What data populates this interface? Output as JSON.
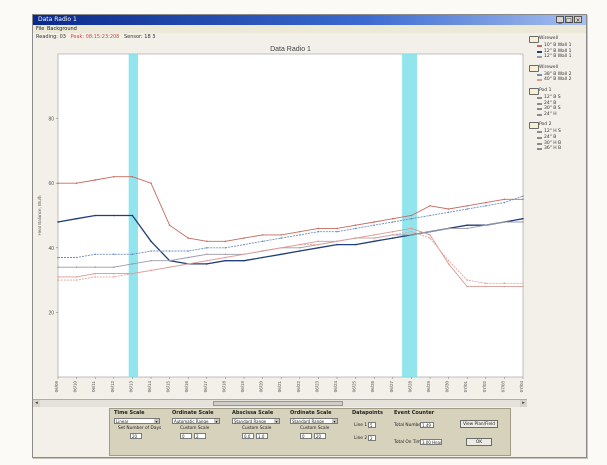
{
  "window": {
    "title": "Data Radio 1",
    "menu": [
      "File",
      "Background"
    ]
  },
  "readout": {
    "text1": "Reading: 03",
    "text2": "Peak: 08:15:23:208",
    "text3": "Sensor: 18 3"
  },
  "colors": {
    "highlight": "#7fe0ea",
    "red_series": "#c66a5f",
    "dark_blue_series": "#223f78",
    "light_blue_series": "#6e8fbe",
    "gray_series": "#9a9aaa",
    "pink_series": "#d99a94"
  },
  "chart_data": {
    "type": "line",
    "title": "Data Radio 1",
    "ylabel": "Heat Balance, Btu/h",
    "ylim": [
      0,
      100
    ],
    "yticks": [
      "80",
      "60",
      "40",
      "20"
    ],
    "categories": [
      "06/09",
      "06/10",
      "06/11",
      "06/12",
      "06/13",
      "06/14",
      "06/15",
      "06/16",
      "06/17",
      "06/18",
      "06/19",
      "06/20",
      "06/21",
      "06/22",
      "06/23",
      "06/24",
      "06/25",
      "06/26",
      "06/27",
      "06/28",
      "06/29",
      "06/30",
      "07/01",
      "07/02",
      "07/03",
      "07/04"
    ],
    "highlight_bands": [
      [
        3.8,
        4.3
      ],
      [
        18.5,
        19.3
      ]
    ],
    "series": [
      {
        "values": [
          60,
          60,
          61,
          62,
          62,
          60,
          47,
          43,
          42,
          42,
          43,
          44,
          44,
          45,
          46,
          46,
          47,
          48,
          49,
          50,
          53,
          52,
          53,
          54,
          55,
          55
        ],
        "color": "#c66a5f"
      },
      {
        "values": [
          48,
          49,
          50,
          50,
          50,
          42,
          36,
          35,
          35,
          36,
          36,
          37,
          38,
          39,
          40,
          41,
          41,
          42,
          43,
          44,
          45,
          46,
          47,
          47,
          48,
          49
        ],
        "color": "#223f78"
      },
      {
        "values": [
          37,
          37,
          38,
          38,
          38,
          39,
          39,
          39,
          40,
          40,
          41,
          42,
          43,
          44,
          45,
          45,
          46,
          47,
          48,
          49,
          50,
          51,
          52,
          53,
          54,
          56
        ],
        "color": "#6e8fbe"
      },
      {
        "values": [
          34,
          34,
          34,
          34,
          35,
          36,
          36,
          37,
          38,
          38,
          38,
          39,
          40,
          40,
          41,
          42,
          43,
          43,
          44,
          44,
          45,
          46,
          46,
          47,
          48,
          48
        ],
        "color": "#9a9aaa"
      },
      {
        "values": [
          31,
          31,
          32,
          32,
          32,
          33,
          34,
          35,
          36,
          37,
          38,
          39,
          40,
          41,
          42,
          42,
          43,
          44,
          45,
          46,
          44,
          35,
          28,
          28,
          28,
          28
        ],
        "color": "#d99a94"
      },
      {
        "values": [
          30,
          30,
          31,
          31,
          32,
          33,
          34,
          35,
          36,
          37,
          38,
          39,
          40,
          41,
          41,
          42,
          43,
          43,
          44,
          45,
          43,
          36,
          30,
          29,
          29,
          29
        ],
        "color": "#e2a6a0"
      }
    ]
  },
  "legend": {
    "groups": [
      {
        "name": "Wirewell",
        "items": [
          {
            "label": "10\" B Wall 1",
            "color": "#c66a5f"
          },
          {
            "label": "12\" B Wall 1",
            "color": "#223f78"
          },
          {
            "label": "12\" B Wall 1",
            "color": "#9a9aaa"
          }
        ]
      },
      {
        "name": "Wirewell",
        "items": [
          {
            "label": "38\" B Wall 2",
            "color": "#6e8fbe"
          },
          {
            "label": "40\" B Wall 2",
            "color": "#d99a94"
          }
        ]
      },
      {
        "name": "Pod 1",
        "items": [
          {
            "label": "12\" B   S",
            "color": "#8a8a8a"
          },
          {
            "label": "24\" B",
            "color": "#8a8a8a"
          },
          {
            "label": "30\" B   S",
            "color": "#8a8a8a"
          },
          {
            "label": "24\" H",
            "color": "#8a8a8a"
          }
        ]
      },
      {
        "name": "Pod 2",
        "items": [
          {
            "label": "12\" H   S",
            "color": "#8a8a8a"
          },
          {
            "label": "24\" B",
            "color": "#8a8a8a"
          },
          {
            "label": "30\" H   B",
            "color": "#8a8a8a"
          },
          {
            "label": "36\" H   B",
            "color": "#8a8a8a"
          }
        ]
      }
    ]
  },
  "controls": {
    "time_scale": {
      "title": "Time Scale",
      "select": "Linear",
      "label": "Set Number of Days",
      "value": "20"
    },
    "ordinate": {
      "title": "Ordinate Scale",
      "select": "Automatic Range",
      "label": "Custom Scale",
      "min": "0",
      "max": "2"
    },
    "abscissa": {
      "title": "Abscissa Scale",
      "select": "Standard Range",
      "label": "Custom Scale",
      "min": "0.0",
      "max": "1.0"
    },
    "ordinate2": {
      "title": "Ordinate Scale",
      "select": "Standard Range",
      "label": "Custom Scale",
      "min": "0",
      "max": "20"
    },
    "datapoints": {
      "title": "Datapoints",
      "line1": "Line 1",
      "line1_val": "5",
      "line2": "Line 2",
      "line2_val": "2"
    },
    "event_counter": {
      "title": "Event Counter",
      "total_label": "Total Number",
      "total_val": "1.49",
      "time_label": "Total On Time",
      "time_val": "3.00 Header"
    },
    "view_button": "View Plan/Field",
    "ok_button": "OK"
  }
}
